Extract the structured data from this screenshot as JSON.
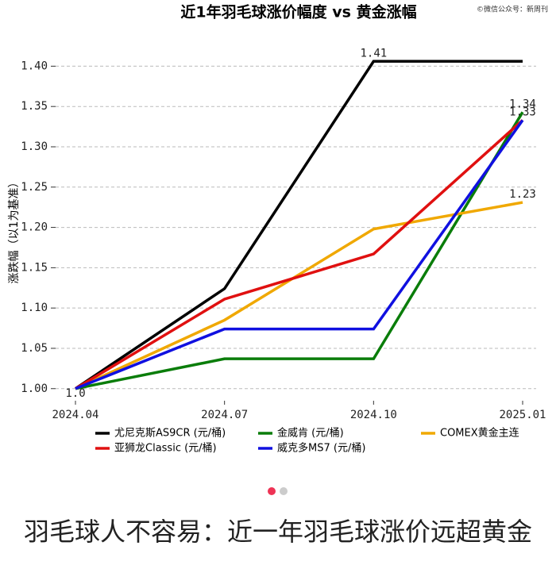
{
  "chart_data": {
    "type": "line",
    "title": "近1年羽毛球涨价幅度 vs 黄金涨幅",
    "y_label": "涨跌幅（以1为基准）",
    "categories": [
      "2024.04",
      "2024.07",
      "2024.10",
      "2025.01"
    ],
    "series": [
      {
        "name": "尤尼克斯AS9CR (元/桶)",
        "color": "#000000",
        "values": [
          1.0,
          1.124,
          1.406,
          1.406
        ],
        "value_labels": [
          "1.0",
          null,
          "1.41",
          null
        ]
      },
      {
        "name": "金威肯 (元/桶)",
        "color": "#0a7d0a",
        "values": [
          1.0,
          1.037,
          1.037,
          1.343
        ],
        "value_labels": [
          null,
          null,
          null,
          "1.34"
        ]
      },
      {
        "name": "COMEX黄金主连",
        "color": "#f0a800",
        "values": [
          1.0,
          1.085,
          1.198,
          1.231
        ],
        "value_labels": [
          null,
          null,
          null,
          "1.23"
        ]
      },
      {
        "name": "亚狮龙Classic (元/桶)",
        "color": "#e01010",
        "values": [
          1.0,
          1.111,
          1.167,
          1.333
        ],
        "value_labels": [
          null,
          null,
          null,
          "1.33"
        ]
      },
      {
        "name": "威克多MS7 (元/桶)",
        "color": "#1010e0",
        "values": [
          1.0,
          1.074,
          1.074,
          1.333
        ]
      }
    ],
    "ylim": [
      0.985,
      1.425
    ],
    "yticks": [
      {
        "value": 1,
        "label": "1.00"
      },
      {
        "value": 1.05,
        "label": "1.05"
      },
      {
        "value": 1.1,
        "label": "1.10"
      },
      {
        "value": 1.15,
        "label": "1.15"
      },
      {
        "value": 1.2,
        "label": "1.20"
      },
      {
        "value": 1.25,
        "label": "1.25"
      },
      {
        "value": 1.3,
        "label": "1.30"
      },
      {
        "value": 1.35,
        "label": "1.35"
      },
      {
        "value": 1.4,
        "label": "1.40"
      }
    ],
    "grid": true
  },
  "page": {
    "watermark": "©微信公众号：新周刊",
    "headline": "羽毛球人不容易：近一年羽毛球涨价远超黄金"
  }
}
